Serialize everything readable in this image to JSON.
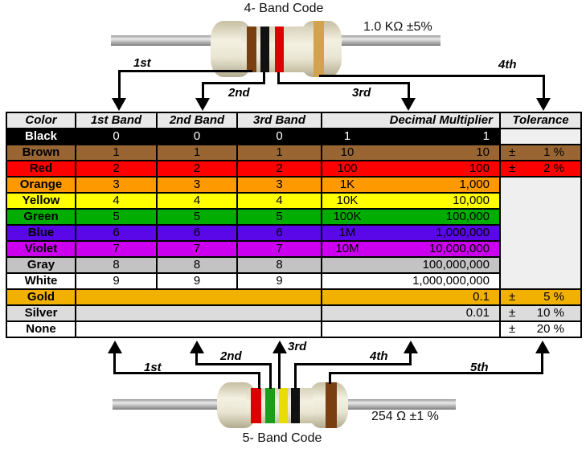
{
  "top_diagram": {
    "title": "4- Band Code",
    "value_label": "1.0 KΩ  ±5%",
    "band_names": [
      "brown",
      "black",
      "red",
      "gold"
    ],
    "arrow_labels": [
      "1st",
      "2nd",
      "3rd",
      "4th"
    ]
  },
  "bottom_diagram": {
    "title": "5- Band Code",
    "value_label": "254 Ω  ±1 %",
    "band_names": [
      "red",
      "green",
      "yellow",
      "black",
      "brown"
    ],
    "arrow_labels": [
      "1st",
      "2nd",
      "3rd",
      "4th",
      "5th"
    ]
  },
  "band_colors": {
    "brown": "#7a3f10",
    "black": "#111111",
    "red": "#dd0000",
    "gold": "#d2a24c",
    "green": "#1b9e1b",
    "yellow": "#e8dc00"
  },
  "table": {
    "headers": [
      "Color",
      "1st Band",
      "2nd Band",
      "3rd Band",
      "Decimal Multiplier",
      "Tolerance"
    ],
    "header_bg": "#e8e8e8",
    "empty_cell_bg": "#efefef",
    "tolerance_span_rows": 7,
    "rows": [
      {
        "name": "Black",
        "bg": "#000000",
        "fg": "#ffffff",
        "bands": [
          "0",
          "0",
          "0"
        ],
        "mult_short": "1",
        "mult_full": "1",
        "tol_type": "empty",
        "tol_sign": "",
        "tol_val": ""
      },
      {
        "name": "Brown",
        "bg": "#996633",
        "fg": "#000000",
        "bands": [
          "1",
          "1",
          "1"
        ],
        "mult_short": "10",
        "mult_full": "10",
        "tol_type": "value",
        "tol_sign": "±",
        "tol_val": "1 %"
      },
      {
        "name": "Red",
        "bg": "#ff0000",
        "fg": "#000000",
        "bands": [
          "2",
          "2",
          "2"
        ],
        "mult_short": "100",
        "mult_full": "100",
        "tol_type": "value",
        "tol_sign": "±",
        "tol_val": "2 %"
      },
      {
        "name": "Orange",
        "bg": "#ff9900",
        "fg": "#000000",
        "bands": [
          "3",
          "3",
          "3"
        ],
        "mult_short": "1K",
        "mult_full": "1,000",
        "tol_type": "span",
        "tol_sign": "",
        "tol_val": ""
      },
      {
        "name": "Yellow",
        "bg": "#ffff00",
        "fg": "#000000",
        "bands": [
          "4",
          "4",
          "4"
        ],
        "mult_short": "10K",
        "mult_full": "10,000",
        "tol_type": "none",
        "tol_sign": "",
        "tol_val": ""
      },
      {
        "name": "Green",
        "bg": "#00ad00",
        "fg": "#000000",
        "bands": [
          "5",
          "5",
          "5"
        ],
        "mult_short": "100K",
        "mult_full": "100,000",
        "tol_type": "none",
        "tol_sign": "",
        "tol_val": ""
      },
      {
        "name": "Blue",
        "bg": "#5a08e8",
        "fg": "#000000",
        "bands": [
          "6",
          "6",
          "6"
        ],
        "mult_short": "1M",
        "mult_full": "1,000,000",
        "tol_type": "none",
        "tol_sign": "",
        "tol_val": ""
      },
      {
        "name": "Violet",
        "bg": "#cc00ee",
        "fg": "#000000",
        "bands": [
          "7",
          "7",
          "7"
        ],
        "mult_short": "10M",
        "mult_full": "10,000,000",
        "tol_type": "none",
        "tol_sign": "",
        "tol_val": ""
      },
      {
        "name": "Gray",
        "bg": "#c3c3c3",
        "fg": "#000000",
        "bands": [
          "8",
          "8",
          "8"
        ],
        "mult_short": "",
        "mult_full": "100,000,000",
        "tol_type": "none",
        "tol_sign": "",
        "tol_val": ""
      },
      {
        "name": "White",
        "bg": "#ffffff",
        "fg": "#000000",
        "bands": [
          "9",
          "9",
          "9"
        ],
        "mult_short": "",
        "mult_full": "1,000,000,000",
        "tol_type": "none",
        "tol_sign": "",
        "tol_val": ""
      },
      {
        "name": "Gold",
        "bg": "#f2b100",
        "fg": "#000000",
        "bands_merged": true,
        "mult_short": "",
        "mult_full": "0.1",
        "tol_type": "value",
        "tol_sign": "±",
        "tol_val": "5 %"
      },
      {
        "name": "Silver",
        "bg": "#dcdcdc",
        "fg": "#000000",
        "bands_merged": true,
        "mult_short": "",
        "mult_full": "0.01",
        "tol_type": "value",
        "tol_sign": "±",
        "tol_val": "10 %"
      },
      {
        "name": "None",
        "bg": "#ffffff",
        "fg": "#000000",
        "bands_merged": true,
        "mult_short": "",
        "mult_full": "",
        "tol_type": "value",
        "tol_sign": "±",
        "tol_val": "20 %"
      }
    ]
  }
}
